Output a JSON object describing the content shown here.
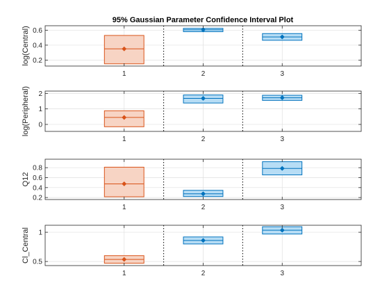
{
  "chart_data": {
    "type": "boxplot",
    "title": "95% Gaussian Parameter Confidence Interval Plot",
    "categories": [
      "1",
      "2",
      "3"
    ],
    "colors": {
      "category_1": "#D95319",
      "category_1_fill": "#F7D4C4",
      "other": "#0072BD",
      "other_fill": "#B7DDF5"
    },
    "grid": true,
    "separators": "dotted vertical lines between groups",
    "panels": [
      {
        "ylabel": "log(Central)",
        "ylim": [
          0.12,
          0.66
        ],
        "yticks": [
          0.2,
          0.4,
          0.6
        ],
        "ytick_labels": [
          "0.2",
          "0.4",
          "0.6"
        ],
        "intervals": [
          {
            "x": 1,
            "lower": 0.15,
            "estimate": 0.35,
            "upper": 0.53
          },
          {
            "x": 2,
            "lower": 0.58,
            "estimate": 0.605,
            "upper": 0.625
          },
          {
            "x": 3,
            "lower": 0.465,
            "estimate": 0.51,
            "upper": 0.555
          }
        ]
      },
      {
        "ylabel": "log(Peripheral)",
        "ylim": [
          -0.45,
          2.15
        ],
        "yticks": [
          0,
          1,
          2
        ],
        "ytick_labels": [
          "0",
          "1",
          "2"
        ],
        "intervals": [
          {
            "x": 1,
            "lower": -0.15,
            "estimate": 0.45,
            "upper": 0.88
          },
          {
            "x": 2,
            "lower": 1.38,
            "estimate": 1.68,
            "upper": 1.9
          },
          {
            "x": 3,
            "lower": 1.55,
            "estimate": 1.72,
            "upper": 1.88
          }
        ]
      },
      {
        "ylabel": "Q12",
        "ylim": [
          0.16,
          0.97
        ],
        "yticks": [
          0.2,
          0.4,
          0.6,
          0.8
        ],
        "ytick_labels": [
          "0.2",
          "0.4",
          "0.6",
          "0.8"
        ],
        "intervals": [
          {
            "x": 1,
            "lower": 0.215,
            "estimate": 0.475,
            "upper": 0.81
          },
          {
            "x": 2,
            "lower": 0.22,
            "estimate": 0.275,
            "upper": 0.345
          },
          {
            "x": 3,
            "lower": 0.655,
            "estimate": 0.785,
            "upper": 0.92
          }
        ]
      },
      {
        "ylabel": "Cl_Central",
        "ylim": [
          0.43,
          1.12
        ],
        "yticks": [
          0.5,
          1
        ],
        "ytick_labels": [
          "0.5",
          "1"
        ],
        "intervals": [
          {
            "x": 1,
            "lower": 0.47,
            "estimate": 0.535,
            "upper": 0.6
          },
          {
            "x": 2,
            "lower": 0.8,
            "estimate": 0.86,
            "upper": 0.92
          },
          {
            "x": 3,
            "lower": 0.97,
            "estimate": 1.035,
            "upper": 1.095
          }
        ]
      }
    ]
  }
}
